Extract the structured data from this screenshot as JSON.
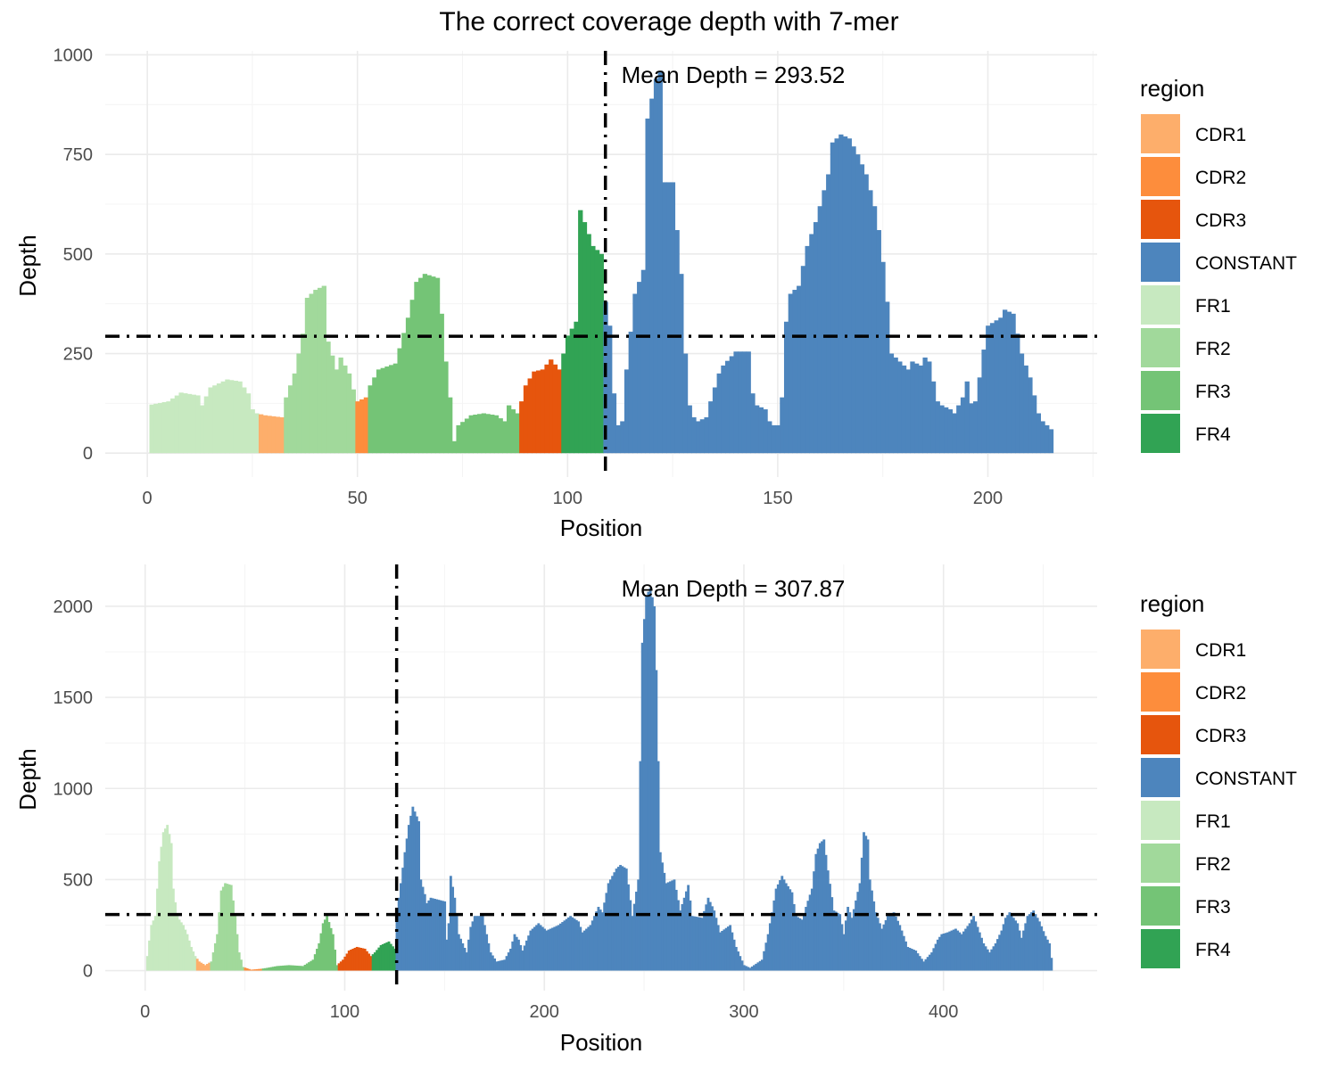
{
  "title": "The correct coverage depth with 7-mer",
  "region_colors": {
    "CDR1": "#FDAE6B",
    "CDR2": "#FD8D3C",
    "CDR3": "#E6550D",
    "CONSTANT": "#4D85BD",
    "FR1": "#C7E9C0",
    "FR2": "#A1D99B",
    "FR3": "#74C476",
    "FR4": "#31A354"
  },
  "chart_data": [
    {
      "type": "bar",
      "xlabel": "Position",
      "ylabel": "Depth",
      "xlim": [
        -10,
        226
      ],
      "ylim": [
        -60,
        1010
      ],
      "x_ticks": [
        0,
        50,
        100,
        150,
        200
      ],
      "y_ticks": [
        0,
        250,
        500,
        750,
        1000
      ],
      "mean_depth": 293.52,
      "mean_label": "Mean Depth = 293.52",
      "vline_x": 109,
      "legend": {
        "title": "region",
        "position": "right"
      },
      "regions": [
        {
          "name": "FR1",
          "start": 1,
          "end": 26
        },
        {
          "name": "CDR1",
          "start": 27,
          "end": 32
        },
        {
          "name": "FR2",
          "start": 33,
          "end": 49
        },
        {
          "name": "CDR2",
          "start": 50,
          "end": 52
        },
        {
          "name": "FR3",
          "start": 53,
          "end": 88
        },
        {
          "name": "CDR3",
          "start": 89,
          "end": 98
        },
        {
          "name": "FR4",
          "start": 99,
          "end": 108
        },
        {
          "name": "CONSTANT",
          "start": 109,
          "end": 215
        }
      ],
      "keypoints": [
        [
          1,
          122
        ],
        [
          5,
          130
        ],
        [
          8,
          152
        ],
        [
          12,
          145
        ],
        [
          13,
          120
        ],
        [
          15,
          165
        ],
        [
          19,
          185
        ],
        [
          22,
          180
        ],
        [
          24,
          150
        ],
        [
          25,
          110
        ],
        [
          26,
          100
        ],
        [
          28,
          95
        ],
        [
          32,
          90
        ],
        [
          33,
          140
        ],
        [
          35,
          200
        ],
        [
          37,
          300
        ],
        [
          38,
          390
        ],
        [
          40,
          410
        ],
        [
          42,
          420
        ],
        [
          43,
          280
        ],
        [
          45,
          210
        ],
        [
          46,
          240
        ],
        [
          48,
          200
        ],
        [
          49,
          160
        ],
        [
          50,
          130
        ],
        [
          52,
          140
        ],
        [
          53,
          170
        ],
        [
          55,
          210
        ],
        [
          59,
          225
        ],
        [
          62,
          340
        ],
        [
          64,
          430
        ],
        [
          66,
          450
        ],
        [
          69,
          440
        ],
        [
          70,
          350
        ],
        [
          71,
          230
        ],
        [
          72,
          140
        ],
        [
          73,
          30
        ],
        [
          74,
          70
        ],
        [
          77,
          95
        ],
        [
          80,
          100
        ],
        [
          83,
          95
        ],
        [
          85,
          80
        ],
        [
          86,
          120
        ],
        [
          88,
          100
        ],
        [
          89,
          130
        ],
        [
          90,
          170
        ],
        [
          92,
          205
        ],
        [
          94,
          210
        ],
        [
          96,
          235
        ],
        [
          98,
          210
        ],
        [
          99,
          250
        ],
        [
          100,
          295
        ],
        [
          102,
          330
        ],
        [
          103,
          610
        ],
        [
          106,
          520
        ],
        [
          108,
          500
        ],
        [
          109,
          380
        ],
        [
          110,
          320
        ],
        [
          111,
          150
        ],
        [
          112,
          70
        ],
        [
          113,
          80
        ],
        [
          114,
          210
        ],
        [
          116,
          400
        ],
        [
          118,
          460
        ],
        [
          119,
          840
        ],
        [
          121,
          940
        ],
        [
          122,
          960
        ],
        [
          123,
          680
        ],
        [
          125,
          680
        ],
        [
          126,
          560
        ],
        [
          127,
          450
        ],
        [
          128,
          250
        ],
        [
          129,
          120
        ],
        [
          130,
          90
        ],
        [
          131,
          80
        ],
        [
          133,
          90
        ],
        [
          134,
          130
        ],
        [
          136,
          200
        ],
        [
          137,
          220
        ],
        [
          140,
          255
        ],
        [
          143,
          255
        ],
        [
          144,
          150
        ],
        [
          145,
          120
        ],
        [
          147,
          110
        ],
        [
          148,
          80
        ],
        [
          149,
          70
        ],
        [
          150,
          70
        ],
        [
          151,
          140
        ],
        [
          152,
          330
        ],
        [
          153,
          400
        ],
        [
          155,
          420
        ],
        [
          157,
          520
        ],
        [
          159,
          580
        ],
        [
          161,
          660
        ],
        [
          162,
          700
        ],
        [
          163,
          780
        ],
        [
          165,
          800
        ],
        [
          167,
          790
        ],
        [
          169,
          750
        ],
        [
          171,
          700
        ],
        [
          173,
          620
        ],
        [
          174,
          560
        ],
        [
          175,
          480
        ],
        [
          176,
          380
        ],
        [
          177,
          250
        ],
        [
          179,
          230
        ],
        [
          181,
          210
        ],
        [
          182,
          230
        ],
        [
          184,
          220
        ],
        [
          185,
          240
        ],
        [
          186,
          230
        ],
        [
          188,
          130
        ],
        [
          189,
          120
        ],
        [
          191,
          110
        ],
        [
          192,
          100
        ],
        [
          194,
          140
        ],
        [
          195,
          180
        ],
        [
          196,
          125
        ],
        [
          197,
          130
        ],
        [
          198,
          190
        ],
        [
          199,
          260
        ],
        [
          200,
          320
        ],
        [
          203,
          340
        ],
        [
          204,
          360
        ],
        [
          206,
          350
        ],
        [
          207,
          300
        ],
        [
          208,
          250
        ],
        [
          209,
          220
        ],
        [
          210,
          190
        ],
        [
          212,
          100
        ],
        [
          213,
          80
        ],
        [
          215,
          60
        ]
      ]
    },
    {
      "type": "bar",
      "xlabel": "Position",
      "ylabel": "Depth",
      "xlim": [
        -20,
        477
      ],
      "ylim": [
        -110,
        2230
      ],
      "x_ticks": [
        0,
        100,
        200,
        300,
        400
      ],
      "y_ticks": [
        0,
        500,
        1000,
        1500,
        2000
      ],
      "mean_depth": 307.87,
      "mean_label": "Mean Depth = 307.87",
      "vline_x": 126,
      "legend": {
        "title": "region",
        "position": "right"
      },
      "regions": [
        {
          "name": "FR1",
          "start": 1,
          "end": 25
        },
        {
          "name": "CDR1",
          "start": 26,
          "end": 32
        },
        {
          "name": "FR2",
          "start": 33,
          "end": 49
        },
        {
          "name": "CDR2",
          "start": 50,
          "end": 58
        },
        {
          "name": "FR3",
          "start": 59,
          "end": 96
        },
        {
          "name": "CDR3",
          "start": 97,
          "end": 113
        },
        {
          "name": "FR4",
          "start": 114,
          "end": 125
        },
        {
          "name": "CONSTANT",
          "start": 126,
          "end": 454
        }
      ],
      "keypoints": [
        [
          1,
          80
        ],
        [
          3,
          250
        ],
        [
          5,
          300
        ],
        [
          7,
          600
        ],
        [
          9,
          760
        ],
        [
          11,
          800
        ],
        [
          13,
          700
        ],
        [
          14,
          450
        ],
        [
          16,
          300
        ],
        [
          17,
          280
        ],
        [
          19,
          250
        ],
        [
          21,
          200
        ],
        [
          23,
          130
        ],
        [
          25,
          80
        ],
        [
          27,
          50
        ],
        [
          30,
          30
        ],
        [
          33,
          50
        ],
        [
          36,
          200
        ],
        [
          38,
          440
        ],
        [
          40,
          480
        ],
        [
          43,
          470
        ],
        [
          45,
          300
        ],
        [
          47,
          100
        ],
        [
          49,
          20
        ],
        [
          53,
          5
        ],
        [
          58,
          10
        ],
        [
          61,
          15
        ],
        [
          66,
          25
        ],
        [
          72,
          30
        ],
        [
          79,
          25
        ],
        [
          84,
          60
        ],
        [
          87,
          150
        ],
        [
          89,
          260
        ],
        [
          91,
          300
        ],
        [
          94,
          200
        ],
        [
          96,
          30
        ],
        [
          99,
          60
        ],
        [
          102,
          110
        ],
        [
          106,
          130
        ],
        [
          110,
          120
        ],
        [
          113,
          80
        ],
        [
          115,
          100
        ],
        [
          118,
          140
        ],
        [
          122,
          160
        ],
        [
          125,
          120
        ],
        [
          126,
          320
        ],
        [
          128,
          480
        ],
        [
          130,
          650
        ],
        [
          132,
          800
        ],
        [
          134,
          900
        ],
        [
          137,
          820
        ],
        [
          138,
          500
        ],
        [
          140,
          420
        ],
        [
          141,
          370
        ],
        [
          143,
          400
        ],
        [
          150,
          380
        ],
        [
          151,
          170
        ],
        [
          152,
          260
        ],
        [
          153,
          520
        ],
        [
          155,
          400
        ],
        [
          157,
          200
        ],
        [
          161,
          100
        ],
        [
          163,
          240
        ],
        [
          165,
          300
        ],
        [
          169,
          300
        ],
        [
          171,
          200
        ],
        [
          173,
          100
        ],
        [
          176,
          50
        ],
        [
          180,
          60
        ],
        [
          183,
          120
        ],
        [
          185,
          200
        ],
        [
          187,
          170
        ],
        [
          189,
          110
        ],
        [
          193,
          220
        ],
        [
          197,
          260
        ],
        [
          201,
          220
        ],
        [
          207,
          250
        ],
        [
          213,
          300
        ],
        [
          217,
          270
        ],
        [
          219,
          210
        ],
        [
          223,
          250
        ],
        [
          227,
          350
        ],
        [
          229,
          320
        ],
        [
          232,
          480
        ],
        [
          236,
          560
        ],
        [
          238,
          580
        ],
        [
          241,
          560
        ],
        [
          244,
          300
        ],
        [
          247,
          500
        ],
        [
          249,
          1800
        ],
        [
          251,
          2060
        ],
        [
          253,
          2100
        ],
        [
          255,
          2000
        ],
        [
          256,
          1650
        ],
        [
          257,
          1150
        ],
        [
          258,
          650
        ],
        [
          261,
          480
        ],
        [
          265,
          500
        ],
        [
          268,
          330
        ],
        [
          272,
          470
        ],
        [
          274,
          300
        ],
        [
          279,
          290
        ],
        [
          282,
          400
        ],
        [
          285,
          330
        ],
        [
          288,
          210
        ],
        [
          293,
          250
        ],
        [
          296,
          130
        ],
        [
          300,
          30
        ],
        [
          303,
          15
        ],
        [
          309,
          60
        ],
        [
          312,
          200
        ],
        [
          314,
          320
        ],
        [
          316,
          450
        ],
        [
          319,
          520
        ],
        [
          321,
          480
        ],
        [
          324,
          430
        ],
        [
          326,
          300
        ],
        [
          329,
          280
        ],
        [
          331,
          350
        ],
        [
          334,
          450
        ],
        [
          336,
          640
        ],
        [
          338,
          700
        ],
        [
          340,
          720
        ],
        [
          342,
          550
        ],
        [
          345,
          330
        ],
        [
          348,
          310
        ],
        [
          350,
          200
        ],
        [
          352,
          350
        ],
        [
          354,
          290
        ],
        [
          358,
          480
        ],
        [
          360,
          760
        ],
        [
          362,
          720
        ],
        [
          363,
          500
        ],
        [
          366,
          320
        ],
        [
          369,
          230
        ],
        [
          372,
          300
        ],
        [
          375,
          320
        ],
        [
          378,
          250
        ],
        [
          382,
          130
        ],
        [
          386,
          110
        ],
        [
          390,
          50
        ],
        [
          394,
          100
        ],
        [
          397,
          170
        ],
        [
          399,
          200
        ],
        [
          402,
          210
        ],
        [
          406,
          230
        ],
        [
          409,
          200
        ],
        [
          413,
          260
        ],
        [
          415,
          300
        ],
        [
          418,
          210
        ],
        [
          420,
          150
        ],
        [
          423,
          100
        ],
        [
          426,
          150
        ],
        [
          429,
          220
        ],
        [
          431,
          290
        ],
        [
          433,
          320
        ],
        [
          437,
          260
        ],
        [
          439,
          180
        ],
        [
          442,
          300
        ],
        [
          445,
          330
        ],
        [
          448,
          270
        ],
        [
          451,
          190
        ],
        [
          453,
          150
        ],
        [
          454,
          70
        ]
      ]
    }
  ]
}
